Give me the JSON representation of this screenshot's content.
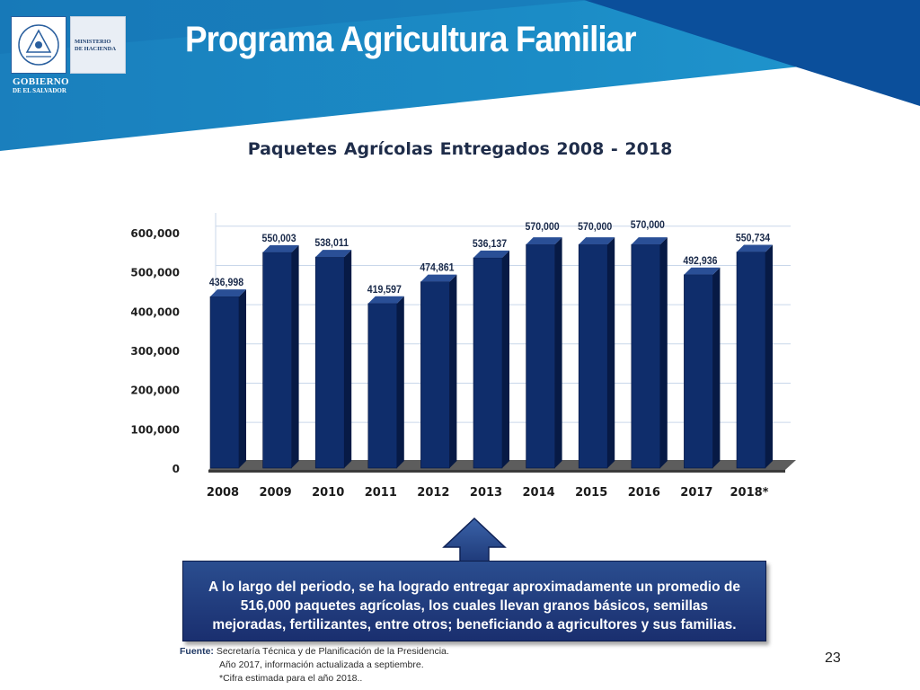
{
  "header": {
    "title": "Programa Agricultura Familiar",
    "logo_ministry_line1": "MINISTERIO",
    "logo_ministry_line2": "DE HACIENDA",
    "logo_gov_line1": "GOBIERNO",
    "logo_gov_line2": "DE EL SALVADOR"
  },
  "colors": {
    "banner_dark": "#0e4f98",
    "banner_light": "#1b8bc4",
    "bar_fill": "#0f2d6b",
    "bar_side": "#071a45",
    "bar_top": "#2a4f96",
    "callout_bg": "#1a2f6f"
  },
  "chart_data": {
    "type": "bar",
    "title": "Paquetes Agrícolas Entregados   2008 - 2018",
    "categories": [
      "2008",
      "2009",
      "2010",
      "2011",
      "2012",
      "2013",
      "2014",
      "2015",
      "2016",
      "2017",
      "2018*"
    ],
    "values": [
      436998,
      550003,
      538011,
      419597,
      474861,
      536137,
      570000,
      570000,
      570000,
      492936,
      550734
    ],
    "value_labels": [
      "436,998",
      "550,003",
      "538,011",
      "419,597",
      "474,861",
      "536,137",
      "570,000",
      "570,000",
      "570,000",
      "492,936",
      "550,734"
    ],
    "y_ticks": [
      "0",
      "100,000",
      "200,000",
      "300,000",
      "400,000",
      "500,000",
      "600,000"
    ],
    "ylim": [
      0,
      600000
    ],
    "grid": true,
    "style": "3d-columns"
  },
  "callout": {
    "text": "A lo largo del periodo, se ha logrado entregar aproximadamente un promedio  de 516,000 paquetes agrícolas, los cuales llevan granos básicos, semillas mejoradas, fertilizantes, entre otros; beneficiando a agricultores y sus familias."
  },
  "footnote": {
    "label": "Fuente:",
    "line1": "Secretaría Técnica y de Planificación de la Presidencia.",
    "line2": "Año 2017, información actualizada a septiembre.",
    "line3": "*Cifra estimada para el año 2018.."
  },
  "page_number": "23"
}
